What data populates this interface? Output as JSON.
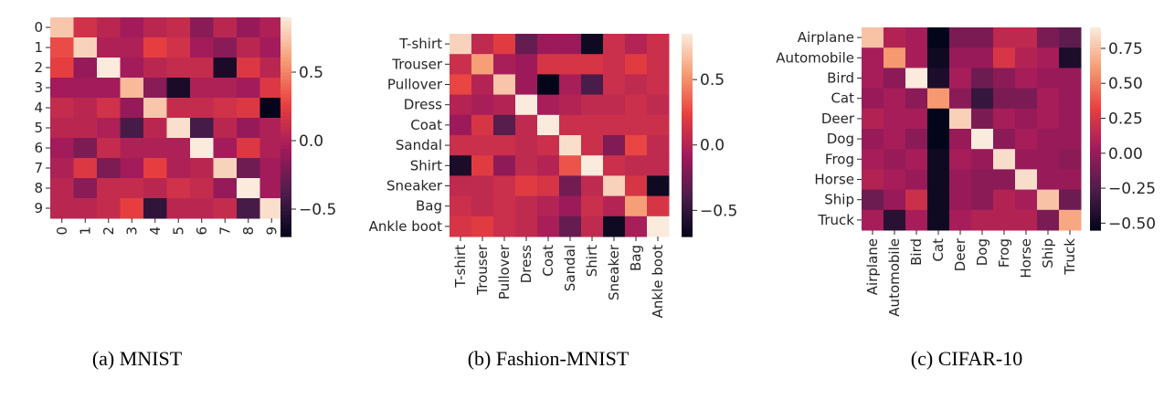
{
  "captions": [
    "(a)  MNIST",
    "(b)  Fashion-MNIST",
    "(c)  CIFAR-10"
  ],
  "colormap": {
    "name": "rocket",
    "stops": [
      "#03051a",
      "#4c1d4b",
      "#a11a5b",
      "#e83f3f",
      "#f69c73",
      "#faebdd"
    ]
  },
  "chart_data": [
    {
      "type": "heatmap",
      "title": "",
      "categories": [
        "0",
        "1",
        "2",
        "3",
        "4",
        "5",
        "6",
        "7",
        "8",
        "9"
      ],
      "vmin": -0.7,
      "vmax": 0.9,
      "colorbar_ticks": [
        0.5,
        0.0,
        -0.5
      ],
      "colorbar_tick_labels": [
        "0.5",
        "0.0",
        "−0.5"
      ],
      "values": [
        [
          0.75,
          0.15,
          0.05,
          -0.05,
          0.05,
          0.1,
          -0.15,
          0.05,
          -0.1,
          0.0
        ],
        [
          0.3,
          0.8,
          0.0,
          0.0,
          0.25,
          0.15,
          -0.05,
          -0.15,
          0.05,
          -0.05
        ],
        [
          0.25,
          -0.1,
          0.9,
          -0.05,
          0.05,
          0.1,
          0.1,
          -0.6,
          0.2,
          0.05
        ],
        [
          -0.05,
          -0.05,
          -0.05,
          0.7,
          -0.15,
          -0.6,
          0.0,
          0.0,
          -0.05,
          0.2
        ],
        [
          0.1,
          0.05,
          0.15,
          -0.1,
          0.75,
          0.1,
          0.1,
          0.15,
          0.2,
          -0.7
        ],
        [
          0.05,
          0.05,
          0.0,
          -0.4,
          0.05,
          0.85,
          -0.4,
          0.05,
          -0.1,
          0.0
        ],
        [
          -0.05,
          -0.2,
          0.1,
          0.0,
          0.0,
          0.0,
          0.9,
          -0.05,
          0.2,
          0.0
        ],
        [
          0.0,
          0.2,
          -0.2,
          -0.05,
          0.25,
          0.0,
          0.05,
          0.8,
          -0.25,
          -0.05
        ],
        [
          0.05,
          -0.15,
          0.1,
          0.1,
          0.05,
          0.15,
          0.1,
          -0.1,
          0.9,
          -0.05
        ],
        [
          0.05,
          0.05,
          0.1,
          0.25,
          -0.5,
          0.05,
          0.05,
          0.1,
          -0.4,
          0.85
        ]
      ]
    },
    {
      "type": "heatmap",
      "title": "",
      "categories": [
        "T-shirt",
        "Trouser",
        "Pullover",
        "Dress",
        "Coat",
        "Sandal",
        "Shirt",
        "Sneaker",
        "Bag",
        "Ankle boot"
      ],
      "vmin": -0.7,
      "vmax": 0.85,
      "colorbar_ticks": [
        0.5,
        0.0,
        -0.5
      ],
      "colorbar_tick_labels": [
        "0.5",
        "0.0",
        "−0.5"
      ],
      "values": [
        [
          0.75,
          0.05,
          0.2,
          -0.3,
          -0.1,
          -0.1,
          -0.65,
          0.1,
          0.0,
          0.1
        ],
        [
          0.1,
          0.55,
          -0.05,
          -0.1,
          0.15,
          0.15,
          0.15,
          0.1,
          0.2,
          0.1
        ],
        [
          0.25,
          0.0,
          0.7,
          -0.1,
          -0.7,
          -0.05,
          -0.4,
          0.1,
          0.05,
          0.1
        ],
        [
          0.0,
          -0.05,
          0.0,
          0.85,
          -0.05,
          0.0,
          0.05,
          0.05,
          0.1,
          0.05
        ],
        [
          -0.1,
          0.15,
          -0.35,
          0.05,
          0.85,
          0.1,
          0.1,
          0.1,
          0.1,
          0.1
        ],
        [
          0.1,
          0.1,
          0.1,
          0.05,
          0.1,
          0.8,
          0.1,
          -0.2,
          0.25,
          0.05
        ],
        [
          -0.6,
          0.2,
          -0.15,
          0.05,
          0.0,
          0.3,
          0.85,
          0.1,
          0.05,
          0.05
        ],
        [
          0.05,
          0.05,
          0.1,
          0.2,
          0.15,
          -0.25,
          0.05,
          0.75,
          0.15,
          -0.65
        ],
        [
          0.1,
          0.05,
          0.1,
          0.05,
          0.0,
          -0.1,
          0.1,
          0.0,
          0.55,
          0.15
        ],
        [
          0.15,
          0.2,
          0.1,
          0.05,
          -0.05,
          -0.3,
          0.05,
          -0.65,
          -0.05,
          0.85
        ]
      ]
    },
    {
      "type": "heatmap",
      "title": "",
      "categories": [
        "Airplane",
        "Automobile",
        "Bird",
        "Cat",
        "Deer",
        "Dog",
        "Frog",
        "Horse",
        "Ship",
        "Truck"
      ],
      "vmin": -0.55,
      "vmax": 0.9,
      "colorbar_ticks": [
        0.75,
        0.5,
        0.25,
        0.0,
        -0.25,
        -0.5
      ],
      "colorbar_tick_labels": [
        "0.75",
        "0.50",
        "0.25",
        "0.00",
        "−0.25",
        "−0.50"
      ],
      "values": [
        [
          0.75,
          0.1,
          0.05,
          -0.55,
          -0.1,
          -0.1,
          0.15,
          0.15,
          -0.1,
          -0.2
        ],
        [
          0.05,
          0.6,
          0.05,
          -0.5,
          0.0,
          0.0,
          0.25,
          0.1,
          0.05,
          -0.45
        ],
        [
          0.05,
          -0.05,
          0.9,
          -0.45,
          0.05,
          -0.15,
          -0.05,
          0.05,
          0.0,
          0.0
        ],
        [
          0.0,
          0.05,
          -0.05,
          0.6,
          -0.05,
          -0.35,
          -0.1,
          -0.1,
          0.05,
          0.0
        ],
        [
          0.1,
          0.05,
          0.05,
          -0.55,
          0.8,
          -0.1,
          0.05,
          0.0,
          0.05,
          0.0
        ],
        [
          0.0,
          0.05,
          -0.05,
          -0.55,
          0.0,
          0.9,
          -0.05,
          0.05,
          0.0,
          0.0
        ],
        [
          0.05,
          0.0,
          0.05,
          -0.5,
          0.05,
          0.0,
          0.85,
          0.0,
          0.0,
          -0.05
        ],
        [
          0.1,
          0.05,
          0.0,
          -0.5,
          0.0,
          -0.05,
          -0.05,
          0.85,
          0.0,
          0.0
        ],
        [
          -0.15,
          0.0,
          0.2,
          -0.5,
          0.0,
          -0.05,
          0.1,
          0.05,
          0.75,
          -0.15
        ],
        [
          0.05,
          -0.4,
          0.05,
          -0.5,
          0.05,
          0.1,
          0.1,
          0.1,
          -0.1,
          0.65
        ]
      ]
    }
  ]
}
